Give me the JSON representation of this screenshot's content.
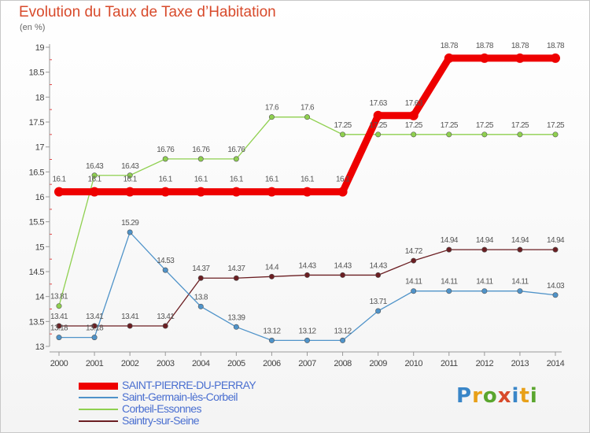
{
  "title": "Evolution du Taux de Taxe d’Habitation",
  "unit_label": "(en %)",
  "logo": {
    "text": "Proxiti",
    "colors": [
      "#3a86c8",
      "#e8a019",
      "#5aa62e",
      "#d84a2b",
      "#3a86c8",
      "#e8a019",
      "#5aa62e"
    ]
  },
  "chart_data": {
    "type": "line",
    "x": [
      "2000",
      "2001",
      "2002",
      "2003",
      "2004",
      "2005",
      "2006",
      "2007",
      "2008",
      "2009",
      "2010",
      "2011",
      "2012",
      "2013",
      "2014"
    ],
    "ylim": [
      13,
      19
    ],
    "yticks": [
      "13",
      "13.5",
      "14",
      "14.5",
      "15",
      "15.5",
      "16",
      "16.5",
      "17",
      "17.5",
      "18",
      "18.5",
      "19"
    ],
    "grid": false,
    "legend_position": "bottom-left",
    "series": [
      {
        "name": "SAINT-PIERRE-DU-PERRAY",
        "color": "#ee0000",
        "highlight": true,
        "values": [
          16.1,
          16.1,
          16.1,
          16.1,
          16.1,
          16.1,
          16.1,
          16.1,
          16.1,
          17.63,
          17.63,
          18.78,
          18.78,
          18.78,
          18.78
        ],
        "labels": [
          "16.1",
          "16.1",
          "16.1",
          "16.1",
          "16.1",
          "16.1",
          "16.1",
          "16.1",
          "16.1",
          "17.63",
          "17.63",
          "18.78",
          "18.78",
          "18.78",
          "18.78"
        ]
      },
      {
        "name": "Saint-Germain-lès-Corbeil",
        "color": "#4f93c9",
        "highlight": false,
        "values": [
          13.18,
          13.18,
          15.29,
          14.53,
          13.8,
          13.39,
          13.12,
          13.12,
          13.12,
          13.71,
          14.11,
          14.11,
          14.11,
          14.11,
          14.03
        ],
        "labels": [
          "13.18",
          "13.18",
          "15.29",
          "14.53",
          "13.8",
          "13.39",
          "13.12",
          "13.12",
          "13.12",
          "13.71",
          "14.11",
          "14.11",
          "14.11",
          "14.11",
          "14.03"
        ]
      },
      {
        "name": "Corbeil-Essonnes",
        "color": "#8fd04f",
        "highlight": false,
        "values": [
          13.81,
          16.43,
          16.43,
          16.76,
          16.76,
          16.76,
          17.6,
          17.6,
          17.25,
          17.25,
          17.25,
          17.25,
          17.25,
          17.25,
          17.25
        ],
        "labels": [
          "13.81",
          "16.43",
          "16.43",
          "16.76",
          "16.76",
          "16.76",
          "17.6",
          "17.6",
          "17.25",
          "17.25",
          "17.25",
          "17.25",
          "17.25",
          "17.25",
          "17.25"
        ]
      },
      {
        "name": "Saintry-sur-Seine",
        "color": "#6b1e22",
        "highlight": false,
        "values": [
          13.41,
          13.41,
          13.41,
          13.41,
          14.37,
          14.37,
          14.4,
          14.43,
          14.43,
          14.43,
          14.72,
          14.94,
          14.94,
          14.94,
          14.94
        ],
        "labels": [
          "13.41",
          "13.41",
          "13.41",
          "13.41",
          "14.37",
          "14.37",
          "14.4",
          "14.43",
          "14.43",
          "14.43",
          "14.72",
          "14.94",
          "14.94",
          "14.94",
          "14.94"
        ]
      }
    ]
  }
}
